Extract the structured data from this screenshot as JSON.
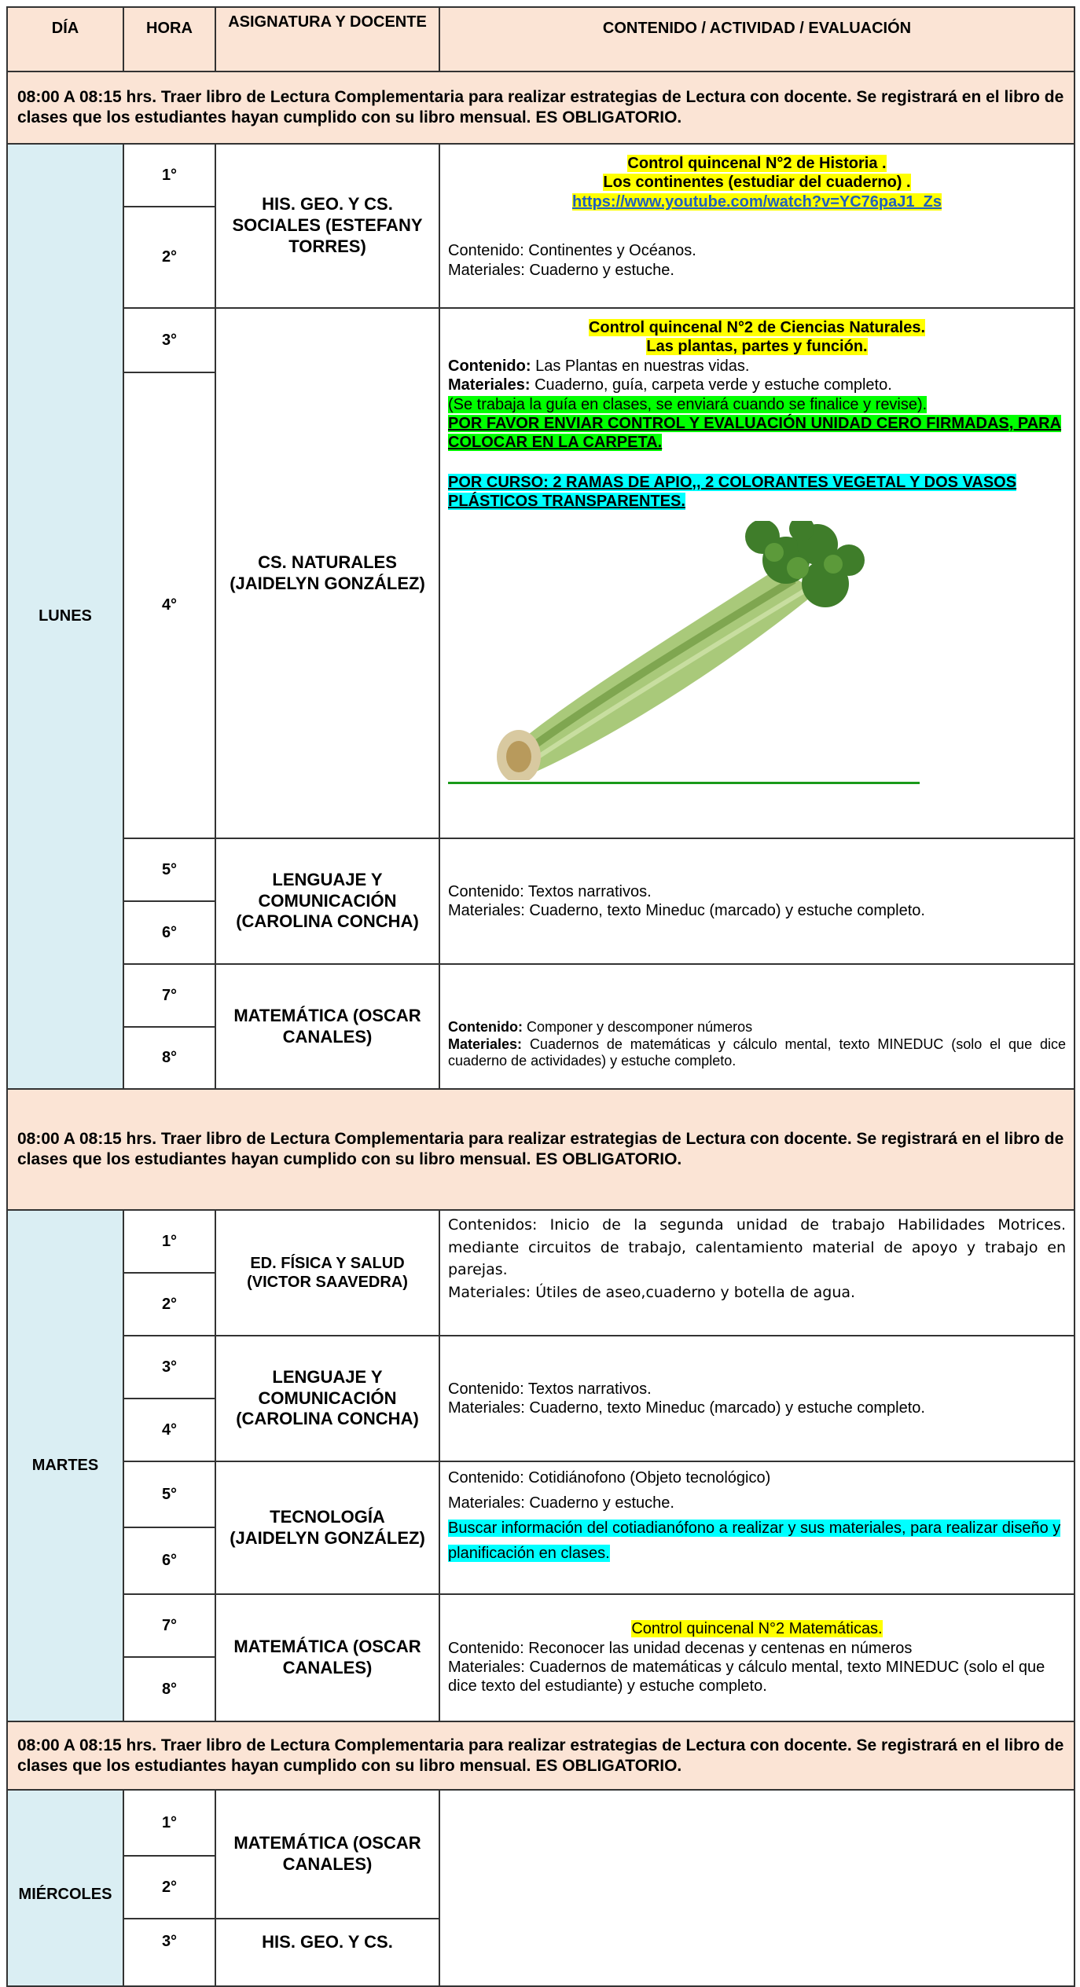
{
  "header": {
    "dia": "DÍA",
    "hora": "HORA",
    "asignatura": "ASIGNATURA Y DOCENTE",
    "contenido": "CONTENIDO / ACTIVIDAD / EVALUACIÓN"
  },
  "notices": [
    "08:00 A 08:15 hrs. Traer libro de Lectura Complementaria para realizar estrategias de Lectura con docente. Se registrará en el libro de clases que los estudiantes hayan cumplido con su libro mensual. ES OBLIGATORIO.",
    "08:00 A 08:15 hrs. Traer libro de Lectura Complementaria para realizar estrategias de Lectura con docente. Se registrará en el libro de clases que los estudiantes hayan cumplido con su libro mensual. ES OBLIGATORIO.",
    "08:00 A 08:15 hrs. Traer libro de Lectura Complementaria para realizar estrategias de Lectura con docente. Se registrará en el libro de clases que los estudiantes hayan cumplido con su libro mensual. ES OBLIGATORIO."
  ],
  "days": [
    {
      "name": "LUNES",
      "blocks": [
        {
          "periods": [
            "1°",
            "2°"
          ],
          "subject": "HIS. GEO. Y CS. SOCIALES (ESTEFANY TORRES)",
          "content": [
            "Control quincenal N°2 de Historia .",
            "Los continentes (estudiar del cuaderno) .",
            "https://www.youtube.com/watch?v=YC76paJ1_Zs",
            "Contenido: Continentes y Océanos.",
            "Materiales: Cuaderno y estuche."
          ]
        },
        {
          "periods": [
            "3°",
            "4°"
          ],
          "subject": "CS. NATURALES (JAIDELYN GONZÁLEZ)",
          "content": [
            "Control quincenal N°2 de Ciencias Naturales.",
            "Las plantas, partes y función.",
            [
              "Contenido:",
              "Las Plantas en nuestras vidas."
            ],
            [
              "Materiales:",
              "Cuaderno, guía, carpeta verde y estuche completo."
            ],
            "(Se trabaja la guía en clases, se enviará cuando se finalice y revise).",
            "POR FAVOR ENVIAR CONTROL Y EVALUACIÓN UNIDAD CERO FIRMADAS, PARA COLOCAR EN LA CARPETA.",
            "POR CURSO: 2 RAMAS DE APIO,, 2 COLORANTES VEGETAL Y DOS VASOS PLÁSTICOS TRANSPARENTES."
          ]
        },
        {
          "periods": [
            "5°",
            "6°"
          ],
          "subject": "LENGUAJE Y COMUNICACIÓN (CAROLINA CONCHA)",
          "content": [
            "Contenido: Textos narrativos.",
            "Materiales: Cuaderno, texto Mineduc (marcado) y estuche completo."
          ]
        },
        {
          "periods": [
            "7°",
            "8°"
          ],
          "subject": "MATEMÁTICA (OSCAR CANALES)",
          "content": [
            [
              "Contenido:",
              "Componer y descomponer números"
            ],
            [
              "Materiales:",
              "Cuadernos de matemáticas y cálculo mental, texto MINEDUC (solo el que dice cuaderno de actividades) y estuche completo."
            ]
          ]
        }
      ]
    },
    {
      "name": "MARTES",
      "blocks": [
        {
          "periods": [
            "1°",
            "2°"
          ],
          "subject": "ED. FÍSICA Y SALUD (VICTOR SAAVEDRA)",
          "content": [
            "Contenidos: Inicio de la segunda unidad de trabajo Habilidades Motrices. mediante circuitos de trabajo, calentamiento material de apoyo  y trabajo en parejas.",
            "Materiales: Útiles de aseo,cuaderno  y botella de agua."
          ]
        },
        {
          "periods": [
            "3°",
            "4°"
          ],
          "subject": "LENGUAJE Y COMUNICACIÓN (CAROLINA CONCHA)",
          "content": [
            "Contenido: Textos narrativos.",
            "Materiales: Cuaderno, texto Mineduc (marcado) y estuche completo."
          ]
        },
        {
          "periods": [
            "5°",
            "6°"
          ],
          "subject": "TECNOLOGÍA (JAIDELYN GONZÁLEZ)",
          "content": [
            "Contenido: Cotidiánofono (Objeto tecnológico)",
            "Materiales: Cuaderno y estuche.",
            "Buscar información del cotiadianófono a realizar y sus materiales, para realizar diseño y planificación en clases."
          ]
        },
        {
          "periods": [
            "7°",
            "8°"
          ],
          "subject": "MATEMÁTICA (OSCAR CANALES)",
          "content": [
            "Control quincenal N°2 Matemáticas.",
            "Contenido: Reconocer las unidad decenas y centenas en números",
            "Materiales: Cuadernos de matemáticas y cálculo mental, texto MINEDUC (solo el que dice texto del estudiante) y estuche completo."
          ]
        }
      ]
    },
    {
      "name": "MIÉRCOLES",
      "blocks": [
        {
          "periods": [
            "1°",
            "2°"
          ],
          "subject": "MATEMÁTICA (OSCAR CANALES)"
        },
        {
          "periods": [
            "3°"
          ],
          "subject": "HIS. GEO. Y CS."
        }
      ]
    }
  ]
}
